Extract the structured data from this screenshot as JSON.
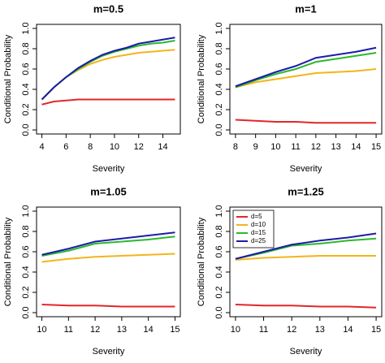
{
  "chart_data": [
    {
      "type": "line",
      "title": "m=0.5",
      "x_label": "Severity",
      "y_label": "Conditional Probability",
      "x": [
        4,
        5,
        6,
        7,
        8,
        9,
        10,
        11,
        12,
        13,
        14,
        15
      ],
      "xlim": [
        3.56,
        15.44
      ],
      "xticks": [
        4,
        6,
        8,
        10,
        12,
        14
      ],
      "ylim": [
        -0.04,
        1.04
      ],
      "yticks": [
        {
          "value": 0,
          "label": "0.0"
        },
        {
          "value": 0.2,
          "label": "0.2"
        },
        {
          "value": 0.4,
          "label": "0.4"
        },
        {
          "value": 0.6,
          "label": "0.6"
        },
        {
          "value": 0.8,
          "label": "0.8"
        },
        {
          "value": 1,
          "label": "1.0"
        }
      ],
      "series": [
        {
          "color": "#e3262a",
          "values": [
            0.25,
            0.28,
            0.29,
            0.3,
            0.3,
            0.3,
            0.3,
            0.3,
            0.3,
            0.3,
            0.3,
            0.3
          ]
        },
        {
          "color": "#f4b41a",
          "values": [
            0.3,
            0.42,
            0.52,
            0.59,
            0.65,
            0.69,
            0.72,
            0.74,
            0.76,
            0.77,
            0.78,
            0.79
          ]
        },
        {
          "color": "#2cb82c",
          "values": [
            0.3,
            0.42,
            0.52,
            0.6,
            0.67,
            0.73,
            0.77,
            0.8,
            0.83,
            0.85,
            0.86,
            0.88
          ]
        },
        {
          "color": "#1c1ca8",
          "values": [
            0.3,
            0.42,
            0.52,
            0.61,
            0.68,
            0.74,
            0.78,
            0.81,
            0.85,
            0.87,
            0.89,
            0.91
          ]
        }
      ]
    },
    {
      "type": "line",
      "title": "m=1",
      "x_label": "Severity",
      "y_label": "Conditional Probability",
      "x": [
        8,
        9,
        10,
        11,
        12,
        13,
        14,
        15
      ],
      "xlim": [
        7.72,
        15.28
      ],
      "xticks": [
        8,
        9,
        10,
        11,
        12,
        13,
        14,
        15
      ],
      "ylim": [
        -0.04,
        1.04
      ],
      "yticks": [
        {
          "value": 0,
          "label": "0.0"
        },
        {
          "value": 0.2,
          "label": "0.2"
        },
        {
          "value": 0.4,
          "label": "0.4"
        },
        {
          "value": 0.6,
          "label": "0.6"
        },
        {
          "value": 0.8,
          "label": "0.8"
        },
        {
          "value": 1,
          "label": "1.0"
        }
      ],
      "series": [
        {
          "color": "#e3262a",
          "values": [
            0.1,
            0.09,
            0.08,
            0.08,
            0.07,
            0.07,
            0.07,
            0.07
          ]
        },
        {
          "color": "#f4b41a",
          "values": [
            0.42,
            0.47,
            0.5,
            0.53,
            0.56,
            0.57,
            0.58,
            0.6
          ]
        },
        {
          "color": "#2cb82c",
          "values": [
            0.42,
            0.49,
            0.55,
            0.6,
            0.67,
            0.7,
            0.73,
            0.76
          ]
        },
        {
          "color": "#1c1ca8",
          "values": [
            0.43,
            0.5,
            0.57,
            0.63,
            0.71,
            0.74,
            0.77,
            0.81
          ]
        }
      ]
    },
    {
      "type": "line",
      "title": "m=1.05",
      "x_label": "Severity",
      "y_label": "Conditional Probability",
      "x": [
        10,
        11,
        12,
        13,
        14,
        15
      ],
      "xlim": [
        9.8,
        15.2
      ],
      "xticks": [
        10,
        11,
        12,
        13,
        14,
        15
      ],
      "ylim": [
        -0.04,
        1.04
      ],
      "yticks": [
        {
          "value": 0,
          "label": "0.0"
        },
        {
          "value": 0.2,
          "label": "0.2"
        },
        {
          "value": 0.4,
          "label": "0.4"
        },
        {
          "value": 0.6,
          "label": "0.6"
        },
        {
          "value": 0.8,
          "label": "0.8"
        },
        {
          "value": 1,
          "label": "1.0"
        }
      ],
      "series": [
        {
          "color": "#e3262a",
          "values": [
            0.08,
            0.07,
            0.07,
            0.06,
            0.06,
            0.06
          ]
        },
        {
          "color": "#f4b41a",
          "values": [
            0.5,
            0.53,
            0.55,
            0.56,
            0.57,
            0.58
          ]
        },
        {
          "color": "#2cb82c",
          "values": [
            0.56,
            0.61,
            0.68,
            0.7,
            0.72,
            0.75
          ]
        },
        {
          "color": "#1c1ca8",
          "values": [
            0.57,
            0.63,
            0.7,
            0.73,
            0.76,
            0.79
          ]
        }
      ]
    },
    {
      "type": "line",
      "title": "m=1.25",
      "x_label": "Severity",
      "y_label": "Conditional Probability",
      "x": [
        10,
        11,
        12,
        13,
        14,
        15
      ],
      "xlim": [
        9.8,
        15.2
      ],
      "xticks": [
        10,
        11,
        12,
        13,
        14,
        15
      ],
      "ylim": [
        -0.04,
        1.04
      ],
      "yticks": [
        {
          "value": 0,
          "label": "0.0"
        },
        {
          "value": 0.2,
          "label": "0.2"
        },
        {
          "value": 0.4,
          "label": "0.4"
        },
        {
          "value": 0.6,
          "label": "0.6"
        },
        {
          "value": 0.8,
          "label": "0.8"
        },
        {
          "value": 1,
          "label": "1.0"
        }
      ],
      "legend": "top-left",
      "series": [
        {
          "name": "d=5",
          "color": "#e3262a",
          "values": [
            0.08,
            0.07,
            0.07,
            0.06,
            0.06,
            0.05
          ]
        },
        {
          "name": "d=10",
          "color": "#f4b41a",
          "values": [
            0.52,
            0.54,
            0.55,
            0.56,
            0.56,
            0.56
          ]
        },
        {
          "name": "d=15",
          "color": "#2cb82c",
          "values": [
            0.53,
            0.59,
            0.66,
            0.68,
            0.71,
            0.73
          ]
        },
        {
          "name": "d=25",
          "color": "#1c1ca8",
          "values": [
            0.53,
            0.6,
            0.67,
            0.71,
            0.74,
            0.78
          ]
        }
      ]
    }
  ]
}
